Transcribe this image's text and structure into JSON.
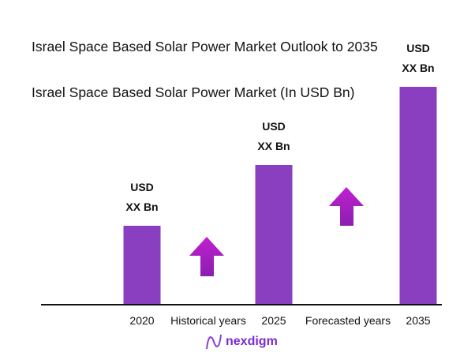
{
  "chart_data": {
    "type": "bar",
    "title": "Israel Space Based Solar Power Market Outlook to 2035",
    "subtitle": "Israel Space Based Solar Power Market (In USD Bn)",
    "categories": [
      "2020",
      "2025",
      "2035"
    ],
    "values": [
      36,
      64,
      100
    ],
    "data_labels": [
      [
        "USD",
        "XX Bn"
      ],
      [
        "USD",
        "XX Bn"
      ],
      [
        "USD",
        "XX Bn"
      ]
    ],
    "annotations": [
      "Historical years",
      "Forecasted years"
    ],
    "grid": false,
    "bar_color": "#8a3fc0",
    "arrow_color": "#a41fc4"
  },
  "logo": {
    "text": "nexdigm"
  }
}
